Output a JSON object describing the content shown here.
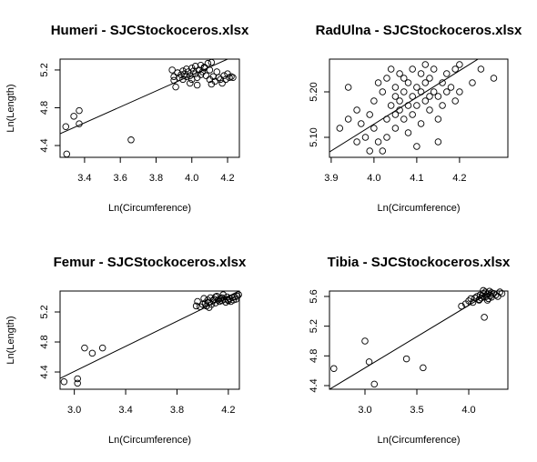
{
  "chart_data": [
    {
      "type": "scatter",
      "title": "Humeri - SJCStockoceros.xlsx",
      "x_label": "Ln(Circumference)",
      "y_label": "Ln(Length)",
      "x": [
        3.89,
        3.9,
        3.91,
        3.92,
        3.93,
        3.94,
        3.95,
        3.95,
        3.96,
        3.97,
        3.97,
        3.98,
        3.99,
        4.0,
        4.0,
        4.01,
        4.02,
        4.02,
        4.03,
        4.04,
        4.05,
        4.05,
        4.06,
        4.07,
        4.08,
        4.09,
        4.1,
        4.1,
        4.11,
        4.12,
        4.13,
        4.14,
        4.15,
        4.16,
        4.17,
        4.18,
        4.19,
        4.2,
        4.21,
        4.22,
        4.23,
        3.9,
        3.99,
        4.03,
        4.07,
        4.11,
        3.295,
        3.3,
        3.34,
        3.37,
        3.37,
        3.66
      ],
      "values": [
        5.2,
        5.13,
        5.02,
        5.17,
        5.12,
        5.15,
        5.19,
        5.1,
        5.16,
        5.21,
        5.13,
        5.18,
        5.14,
        5.22,
        5.1,
        5.19,
        5.16,
        5.24,
        5.12,
        5.2,
        5.15,
        5.25,
        5.18,
        5.22,
        5.14,
        5.27,
        5.1,
        5.2,
        5.05,
        5.13,
        5.08,
        5.18,
        5.12,
        5.1,
        5.06,
        5.14,
        5.1,
        5.16,
        5.12,
        5.13,
        5.12,
        5.09,
        5.06,
        5.04,
        5.23,
        5.28,
        4.6,
        4.31,
        4.71,
        4.63,
        4.77,
        4.46
      ],
      "fit": {
        "intercept": 1.774,
        "slope": 0.843
      },
      "xlim": [
        3.263,
        4.266
      ],
      "ylim": [
        4.275,
        5.315
      ],
      "xticks": [
        3.4,
        3.6,
        3.8,
        {
          "value": 4,
          "label": "4.0"
        },
        4.2
      ],
      "yticks": [
        4.4,
        4.8,
        5.2
      ]
    },
    {
      "type": "scatter",
      "title": "RadUlna - SJCStockoceros.xlsx",
      "x_label": "Ln(Circumference)",
      "x": [
        3.92,
        3.94,
        3.94,
        3.96,
        3.96,
        3.97,
        3.98,
        3.99,
        4.0,
        4.0,
        4.01,
        4.01,
        4.02,
        4.02,
        4.03,
        4.03,
        4.04,
        4.04,
        4.05,
        4.05,
        4.05,
        4.06,
        4.06,
        4.07,
        4.07,
        4.07,
        4.08,
        4.08,
        4.08,
        4.09,
        4.09,
        4.09,
        4.1,
        4.1,
        4.1,
        4.11,
        4.11,
        4.11,
        4.12,
        4.12,
        4.12,
        4.13,
        4.13,
        4.14,
        4.14,
        4.15,
        4.15,
        4.16,
        4.16,
        4.17,
        4.17,
        4.18,
        4.19,
        4.19,
        4.2,
        4.2,
        4.23,
        4.25,
        4.28,
        4.15,
        4.05,
        4.03,
        4.06,
        4.13,
        3.99
      ],
      "values": [
        5.12,
        5.21,
        5.14,
        5.09,
        5.16,
        5.13,
        5.1,
        5.15,
        5.18,
        5.12,
        5.22,
        5.09,
        5.07,
        5.2,
        5.14,
        5.1,
        5.25,
        5.17,
        5.21,
        5.15,
        5.12,
        5.24,
        5.18,
        5.2,
        5.14,
        5.23,
        5.17,
        5.22,
        5.11,
        5.19,
        5.25,
        5.15,
        5.21,
        5.08,
        5.17,
        5.24,
        5.13,
        5.2,
        5.26,
        5.22,
        5.18,
        5.16,
        5.23,
        5.2,
        5.25,
        5.19,
        5.14,
        5.22,
        5.17,
        5.24,
        5.2,
        5.21,
        5.25,
        5.18,
        5.26,
        5.2,
        5.22,
        5.25,
        5.23,
        5.09,
        5.19,
        5.23,
        5.16,
        5.19,
        5.07
      ],
      "fit": {
        "intercept": 2.777,
        "slope": 0.588
      },
      "xlim": [
        3.896,
        4.313
      ],
      "ylim": [
        5.056,
        5.272
      ],
      "xticks": [
        3.9,
        {
          "value": 4,
          "label": "4.0"
        },
        4.1,
        4.2
      ],
      "yticks": [
        {
          "value": 5.1,
          "label": "5.10"
        },
        {
          "value": 5.2,
          "label": "5.20"
        }
      ]
    },
    {
      "type": "scatter",
      "title": "Femur - SJCStockoceros.xlsx",
      "x_label": "Ln(Circumference)",
      "y_label": "Ln(Length)",
      "x": [
        3.95,
        3.96,
        3.98,
        4.0,
        4.01,
        4.02,
        4.03,
        4.04,
        4.05,
        4.06,
        4.07,
        4.08,
        4.09,
        4.1,
        4.11,
        4.12,
        4.13,
        4.14,
        4.15,
        4.16,
        4.17,
        4.18,
        4.19,
        4.2,
        4.21,
        4.22,
        4.23,
        4.24,
        4.25,
        4.26,
        4.27,
        4.28,
        4.05,
        4.1,
        4.15,
        4.2,
        2.92,
        3.025,
        3.025,
        3.08,
        3.14,
        3.22
      ],
      "values": [
        5.28,
        5.34,
        5.27,
        5.3,
        5.38,
        5.32,
        5.28,
        5.36,
        5.33,
        5.39,
        5.3,
        5.35,
        5.37,
        5.32,
        5.41,
        5.36,
        5.34,
        5.38,
        5.35,
        5.43,
        5.37,
        5.33,
        5.4,
        5.36,
        5.38,
        5.34,
        5.39,
        5.36,
        5.4,
        5.37,
        5.41,
        5.43,
        5.26,
        5.4,
        5.39,
        5.35,
        4.27,
        4.31,
        4.25,
        4.72,
        4.65,
        4.72
      ],
      "fit": {
        "intercept": 1.903,
        "slope": 0.835
      },
      "xlim": [
        2.889,
        4.286
      ],
      "ylim": [
        4.17,
        5.479
      ],
      "xticks": [
        {
          "value": 3,
          "label": "3.0"
        },
        3.4,
        3.8,
        4.2
      ],
      "yticks": [
        4.4,
        4.8,
        5.2
      ]
    },
    {
      "type": "scatter",
      "title": "Tibia - SJCStockoceros.xlsx",
      "x_label": "Ln(Circumference)",
      "x": [
        3.93,
        3.97,
        4.0,
        4.02,
        4.04,
        4.06,
        4.08,
        4.1,
        4.11,
        4.12,
        4.13,
        4.14,
        4.15,
        4.16,
        4.17,
        4.18,
        4.19,
        4.2,
        4.21,
        4.22,
        4.24,
        4.26,
        4.28,
        4.3,
        4.32,
        4.1,
        4.14,
        4.18,
        4.22,
        4.15,
        2.7,
        3.0,
        3.04,
        3.09,
        3.4,
        3.56
      ],
      "values": [
        5.47,
        5.5,
        5.54,
        5.57,
        5.52,
        5.58,
        5.6,
        5.56,
        5.62,
        5.58,
        5.61,
        5.64,
        5.59,
        5.66,
        5.6,
        5.63,
        5.57,
        5.67,
        5.61,
        5.59,
        5.64,
        5.62,
        5.6,
        5.66,
        5.64,
        5.55,
        5.68,
        5.55,
        5.65,
        5.32,
        4.63,
        5.0,
        4.72,
        4.42,
        4.76,
        4.64
      ],
      "fit": {
        "intercept": 2.112,
        "slope": 0.842
      },
      "xlim": [
        2.658,
        4.377
      ],
      "ylim": [
        4.351,
        5.673
      ],
      "xticks": [
        {
          "value": 3,
          "label": "3.0"
        },
        3.5,
        {
          "value": 4,
          "label": "4.0"
        }
      ],
      "yticks": [
        4.4,
        4.8,
        5.2,
        5.6
      ]
    }
  ]
}
